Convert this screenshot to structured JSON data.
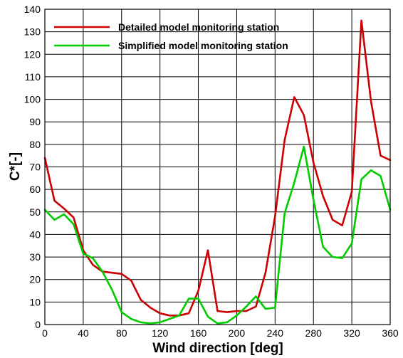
{
  "chart_data": {
    "type": "line",
    "title": "",
    "xlabel": "Wind direction [deg]",
    "ylabel": "C*[-]",
    "xlim": [
      0,
      360
    ],
    "ylim": [
      0,
      140
    ],
    "xticks": [
      0,
      40,
      80,
      120,
      160,
      200,
      240,
      280,
      320,
      360
    ],
    "yticks": [
      0,
      10,
      20,
      30,
      40,
      50,
      60,
      70,
      80,
      90,
      100,
      110,
      120,
      130,
      140
    ],
    "grid": true,
    "legend_position": "top-left",
    "x": [
      0,
      10,
      20,
      30,
      40,
      50,
      60,
      70,
      80,
      90,
      100,
      110,
      120,
      130,
      140,
      150,
      160,
      170,
      180,
      190,
      200,
      210,
      220,
      230,
      240,
      250,
      260,
      270,
      280,
      290,
      300,
      310,
      320,
      330,
      340,
      350,
      360
    ],
    "series": [
      {
        "name": "Detailed model monitoring station",
        "color": "#cc0000",
        "values": [
          74,
          55,
          51.5,
          47.5,
          33,
          26.5,
          23.5,
          23,
          22.5,
          19.5,
          11,
          7.5,
          5,
          4,
          4,
          5,
          15,
          33,
          6,
          5.5,
          6,
          6,
          8,
          23,
          48,
          82,
          101,
          93,
          72,
          57,
          46.5,
          44,
          59,
          135,
          99,
          75,
          73
        ]
      },
      {
        "name": "Simplified model monitoring station",
        "color": "#00cc00",
        "values": [
          51,
          46.5,
          49,
          44.5,
          31.5,
          29.5,
          23.5,
          15.5,
          5.5,
          2.5,
          1,
          0.5,
          1,
          2.5,
          4,
          11.5,
          11.5,
          3.5,
          0.5,
          1,
          4,
          8,
          12.5,
          7,
          7.5,
          49.5,
          63,
          79,
          55.5,
          34.5,
          30,
          29.5,
          36,
          64.5,
          68.5,
          66,
          51
        ]
      }
    ]
  }
}
